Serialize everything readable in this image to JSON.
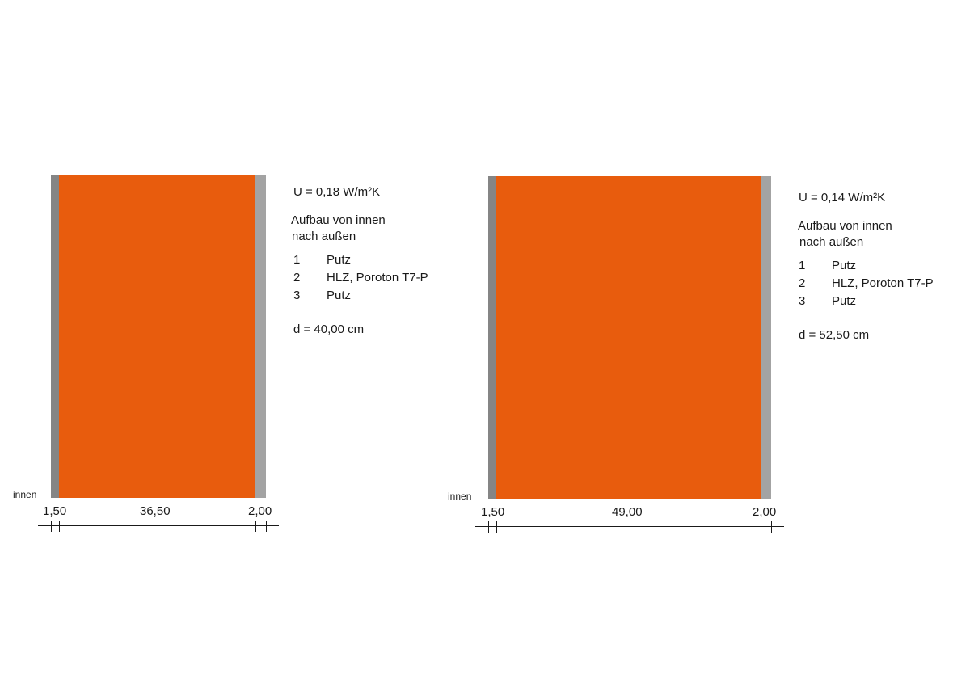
{
  "colors": {
    "inner_plaster": "#858585",
    "brick": "#e85c0d",
    "outer_plaster": "#a3a3a3",
    "line": "#1a1a1a"
  },
  "walls": [
    {
      "u_value": "U = 0,18 W/m²K",
      "heading_line1": "Aufbau von innen",
      "heading_line2": "nach außen",
      "layers": [
        {
          "num": "1",
          "name": "Putz"
        },
        {
          "num": "2",
          "name": "HLZ, Poroton T7-P"
        },
        {
          "num": "3",
          "name": "Putz"
        }
      ],
      "thickness": "d = 40,00 cm",
      "side_label": "innen",
      "dimensions": {
        "inner": "1,50",
        "core": "36,50",
        "outer": "2,00"
      }
    },
    {
      "u_value": "U = 0,14 W/m²K",
      "heading_line1": "Aufbau von innen",
      "heading_line2": "nach außen",
      "layers": [
        {
          "num": "1",
          "name": "Putz"
        },
        {
          "num": "2",
          "name": "HLZ, Poroton T7-P"
        },
        {
          "num": "3",
          "name": "Putz"
        }
      ],
      "thickness": "d = 52,50 cm",
      "side_label": "innen",
      "dimensions": {
        "inner": "1,50",
        "core": "49,00",
        "outer": "2,00"
      }
    }
  ]
}
